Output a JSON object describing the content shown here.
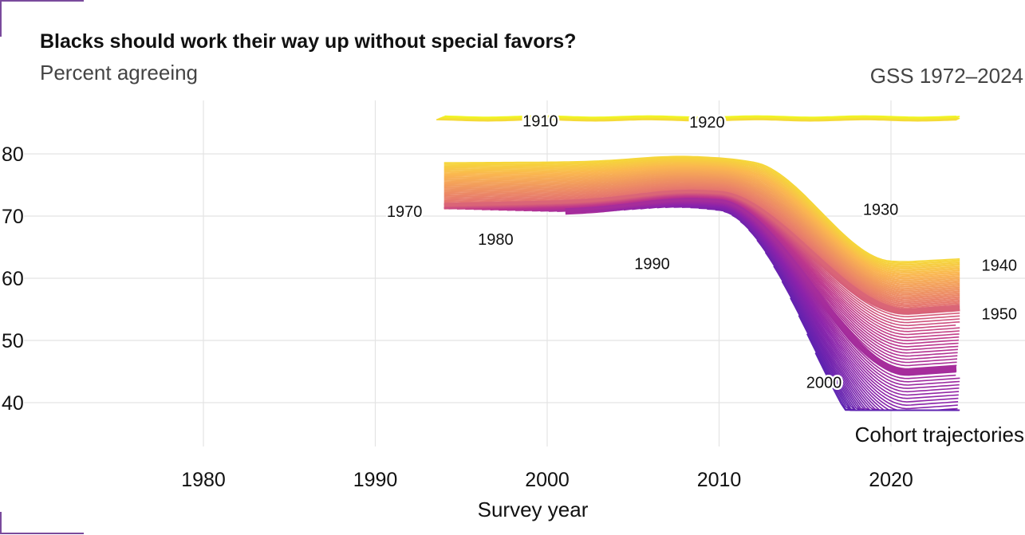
{
  "header": {
    "title": "Blacks should work their way up without special favors?",
    "subtitle": "Percent agreeing",
    "source": "GSS 1972–2024"
  },
  "chart_data": {
    "type": "line",
    "title": "Blacks should work their way up without special favors?",
    "subtitle": "Percent agreeing",
    "xlabel": "Survey year",
    "ylabel": "",
    "xlim": [
      1972,
      2025
    ],
    "ylim": [
      33.5,
      88
    ],
    "x_ticks": [
      1980,
      1990,
      2000,
      2010,
      2020
    ],
    "y_ticks": [
      40,
      50,
      60,
      70,
      80
    ],
    "grid": true,
    "legend": "none",
    "annotation": "Cohort trajectories",
    "colors": {
      "oldest": "#f0f921",
      "middle": "#b12a90",
      "youngest": "#5c22b0"
    },
    "cohort_labels": [
      {
        "text": "1910",
        "x": 1999.6,
        "y": 85.3
      },
      {
        "text": "1920",
        "x": 2009.3,
        "y": 85.1
      },
      {
        "text": "1930",
        "x": 2019.4,
        "y": 71.1
      },
      {
        "text": "1940",
        "x": 2026.3,
        "y": 62.1
      },
      {
        "text": "1950",
        "x": 2026.3,
        "y": 54.3
      },
      {
        "text": "1970",
        "x": 1991.7,
        "y": 70.8
      },
      {
        "text": "1980",
        "x": 1997.0,
        "y": 66.3
      },
      {
        "text": "1990",
        "x": 2006.1,
        "y": 62.4
      },
      {
        "text": "2000",
        "x": 2016.1,
        "y": 43.3
      }
    ],
    "highlight_cohorts": [
      1950,
      1970
    ],
    "cohort_range": [
      1901,
      2000
    ],
    "trajectories_sample": [
      {
        "cohort": 1905,
        "x": [
          1993,
          1996,
          2000,
          2004,
          2008
        ],
        "y": [
          86.1,
          86.0,
          85.8,
          85.7,
          85.8
        ]
      },
      {
        "cohort": 1930,
        "x": [
          1994,
          2000,
          2004,
          2008,
          2012,
          2016,
          2020,
          2024
        ],
        "y": [
          80.5,
          80.8,
          81.0,
          82.0,
          81.0,
          75.5,
          65.0,
          65.5
        ]
      },
      {
        "cohort": 1950,
        "x": [
          1994,
          2000,
          2004,
          2008,
          2012,
          2016,
          2020,
          2022,
          2024
        ],
        "y": [
          71.5,
          71.9,
          72.1,
          73.2,
          71.0,
          64.5,
          54.5,
          54.0,
          54.5
        ]
      },
      {
        "cohort": 1970,
        "x": [
          1994,
          2000,
          2004,
          2008,
          2012,
          2016,
          2020,
          2022,
          2024
        ],
        "y": [
          71.5,
          71.9,
          72.1,
          73.2,
          71.0,
          64.5,
          54.5,
          54.0,
          54.5
        ]
      },
      {
        "cohort": 2000,
        "x": [
          2016,
          2018,
          2020,
          2022,
          2024
        ],
        "y": [
          43.0,
          40.0,
          38.8,
          38.8,
          38.8
        ]
      }
    ]
  }
}
